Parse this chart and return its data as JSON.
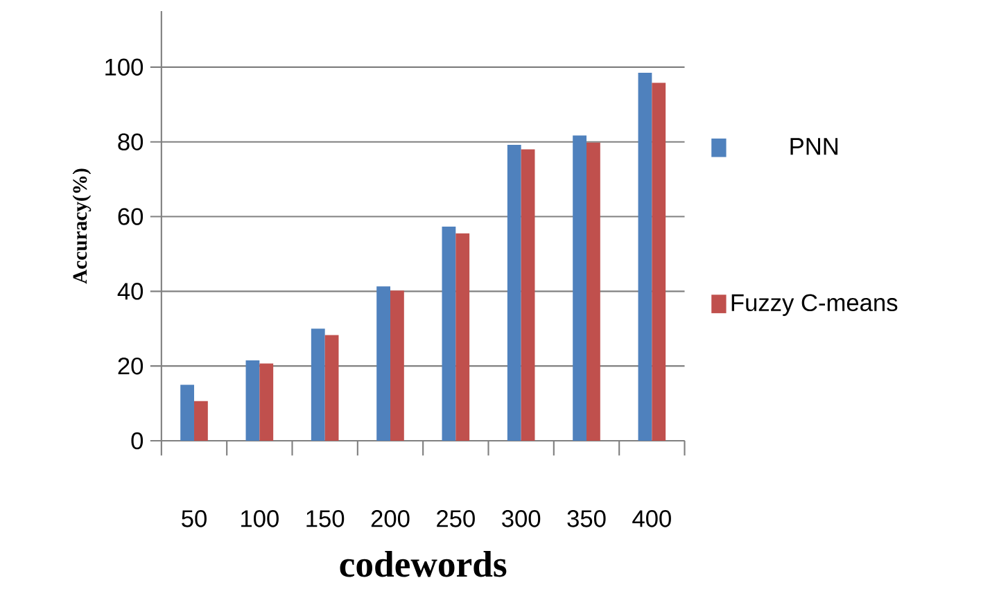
{
  "chart_data": {
    "type": "bar",
    "xlabel": "codewords",
    "ylabel": "Accuracy(%)",
    "categories": [
      "50",
      "100",
      "150",
      "200",
      "250",
      "300",
      "350",
      "400"
    ],
    "series": [
      {
        "name": "PNN",
        "color": "#4f81bd",
        "values": [
          15,
          21.5,
          30,
          41.3,
          57.3,
          79.2,
          81.7,
          98.5
        ]
      },
      {
        "name": "Fuzzy C-means",
        "color": "#c0504d",
        "values": [
          10.6,
          20.7,
          28.3,
          40.2,
          55.5,
          78,
          79.8,
          95.8
        ]
      }
    ],
    "ylim": [
      0,
      115
    ],
    "yticks": [
      0,
      20,
      40,
      60,
      80,
      100
    ],
    "grid": "y",
    "legend": "right"
  }
}
